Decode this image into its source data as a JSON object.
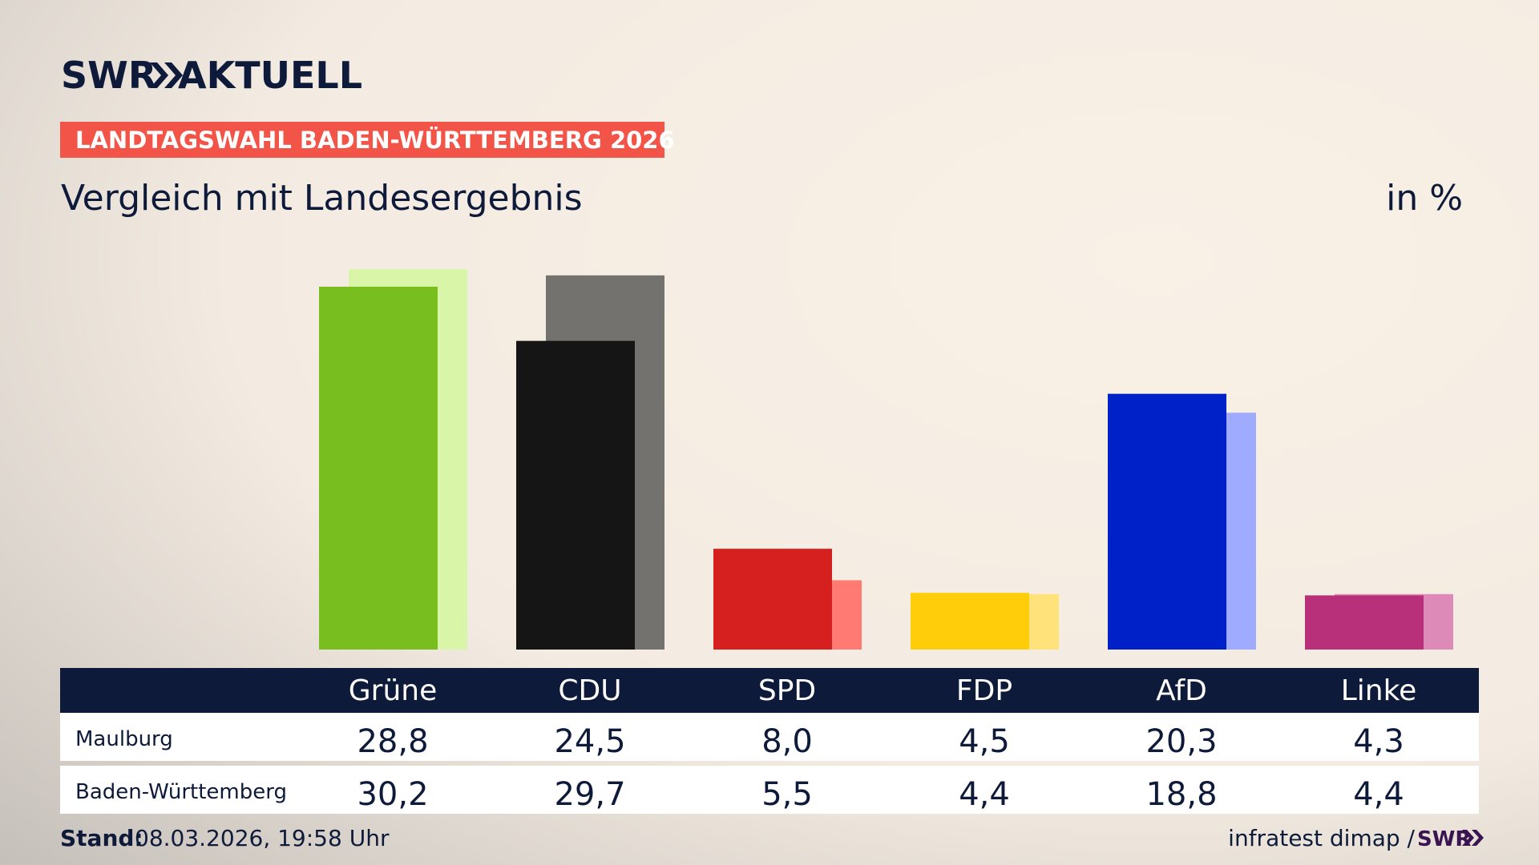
{
  "chart_data": {
    "type": "bar",
    "brand": "SWR",
    "brand_suffix": "AKTUELL",
    "banner": "LANDTAGSWAHL BADEN-WÜRTTEMBERG 2026",
    "title": "Vergleich mit Landesergebnis",
    "unit": "in %",
    "categories": [
      "Grüne",
      "CDU",
      "SPD",
      "FDP",
      "AfD",
      "Linke"
    ],
    "series": [
      {
        "name": "Maulburg",
        "colors": [
          "#78be1e",
          "#151515",
          "#d61f1f",
          "#ffcd0a",
          "#0020c8",
          "#b8307a"
        ],
        "values": [
          28.8,
          24.5,
          8.0,
          4.5,
          20.3,
          4.3
        ],
        "value_labels": [
          "28,8",
          "24,5",
          "8,0",
          "4,5",
          "20,3",
          "4,3"
        ]
      },
      {
        "name": "Baden-Württemberg",
        "colors": [
          "#d8f5a8",
          "#74726f",
          "#ff7a72",
          "#ffe27a",
          "#9fabff",
          "#de8ab8"
        ],
        "values": [
          30.2,
          29.7,
          5.5,
          4.4,
          18.8,
          4.4
        ],
        "value_labels": [
          "30,2",
          "29,7",
          "5,5",
          "4,4",
          "18,8",
          "4,4"
        ]
      }
    ],
    "footer_label": "Stand:",
    "footer_date": "08.03.2026, 19:58 Uhr",
    "source": "infratest dimap /",
    "source_brand": "SWR"
  }
}
